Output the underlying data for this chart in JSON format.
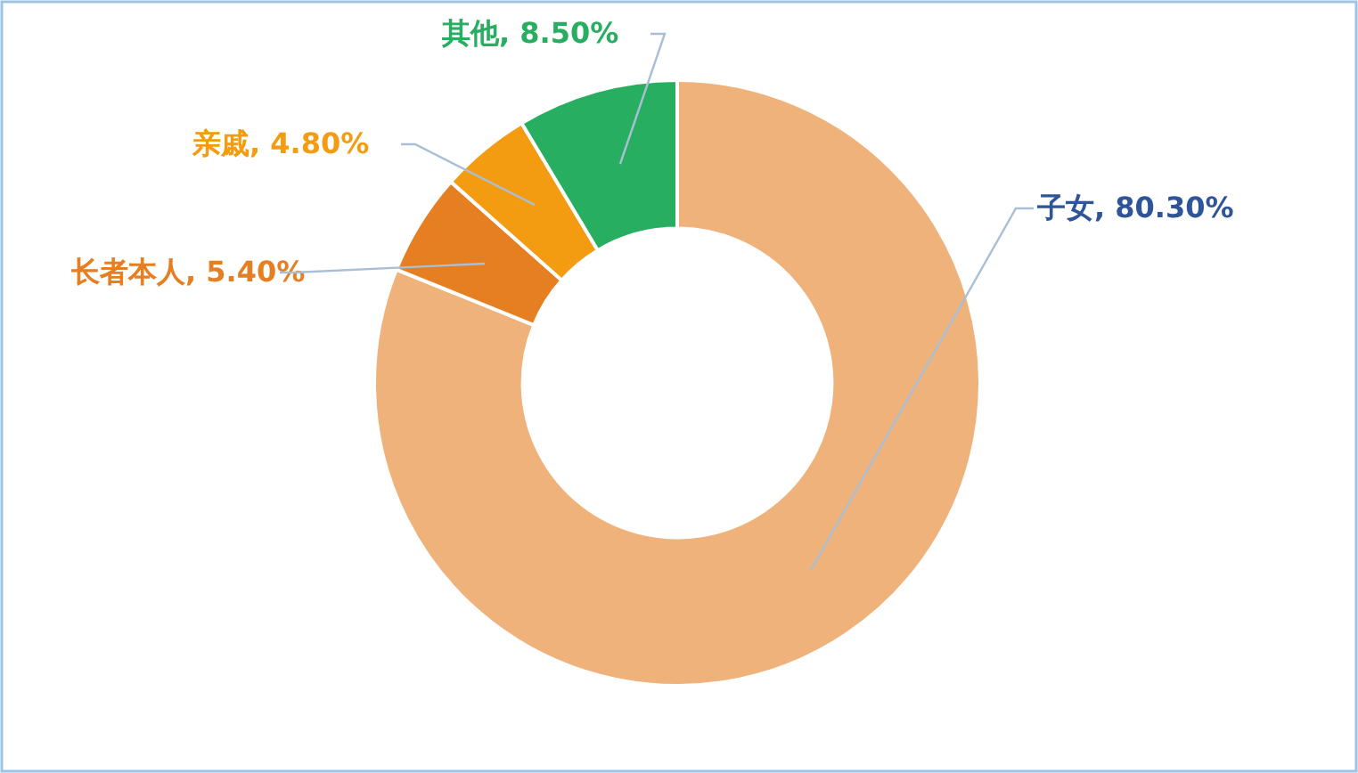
{
  "chart_data": {
    "type": "donut",
    "categories": [
      "子女",
      "长者本人",
      "亲戚",
      "其他"
    ],
    "values": [
      80.3,
      5.4,
      4.8,
      8.5
    ],
    "value_labels": [
      "80.30%",
      "5.40%",
      "4.80%",
      "8.50%"
    ],
    "colors": [
      "#efb27b",
      "#e67e22",
      "#f39c12",
      "#27ae60"
    ],
    "legend": false
  }
}
